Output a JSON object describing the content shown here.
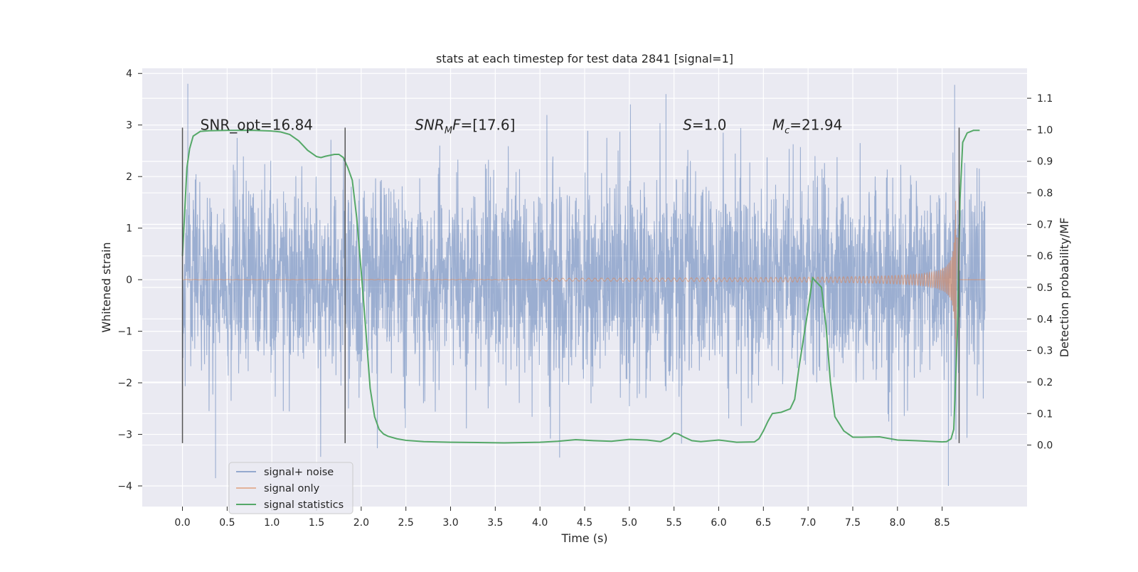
{
  "chart_data": {
    "type": "line",
    "title": "stats at each timestep for test data 2841 [signal=1]",
    "xlabel": "Time (s)",
    "ylabel_left": "Whitened strain",
    "ylabel_right": "Detection probability/MF",
    "xlim": [
      -0.45,
      9.45
    ],
    "ylim_left": [
      -4.4,
      4.1
    ],
    "ylim_right": [
      -0.195,
      1.195
    ],
    "x_ticks": [
      0.0,
      0.5,
      1.0,
      1.5,
      2.0,
      2.5,
      3.0,
      3.5,
      4.0,
      4.5,
      5.0,
      5.5,
      6.0,
      6.5,
      7.0,
      7.5,
      8.0,
      8.5
    ],
    "x_tick_labels": [
      "0.0",
      "0.5",
      "1.0",
      "1.5",
      "2.0",
      "2.5",
      "3.0",
      "3.5",
      "4.0",
      "4.5",
      "5.0",
      "5.5",
      "6.0",
      "6.5",
      "7.0",
      "7.5",
      "8.0",
      "8.5"
    ],
    "y_left_ticks": [
      -4,
      -3,
      -2,
      -1,
      0,
      1,
      2,
      3,
      4
    ],
    "y_left_tick_labels": [
      "−4",
      "−3",
      "−2",
      "−1",
      "0",
      "1",
      "2",
      "3",
      "4"
    ],
    "y_right_ticks": [
      0.0,
      0.1,
      0.2,
      0.3,
      0.4,
      0.5,
      0.6,
      0.7,
      0.8,
      0.9,
      1.0,
      1.1
    ],
    "y_right_tick_labels": [
      "0.0",
      "0.1",
      "0.2",
      "0.3",
      "0.4",
      "0.5",
      "0.6",
      "0.7",
      "0.8",
      "0.9",
      "1.0",
      "1.1"
    ],
    "grid": true,
    "legend_position": "lower-left",
    "annotations": [
      {
        "text": "SNR_opt=16.84",
        "x": 0.2,
        "y": 3.0
      },
      {
        "text": "SNR_MF=[17.6]",
        "x": 2.6,
        "y": 3.0
      },
      {
        "text": "S=1.0",
        "x": 5.6,
        "y": 3.0
      },
      {
        "text": "M_c=21.94",
        "x": 6.6,
        "y": 3.0
      }
    ],
    "vertical_markers": [
      {
        "x": 0.0,
        "y_min": -3.17,
        "y_max": 2.95
      },
      {
        "x": 1.82,
        "y_min": -3.17,
        "y_max": 2.95
      },
      {
        "x": 8.69,
        "y_min": -3.17,
        "y_max": 2.95
      }
    ],
    "series": [
      {
        "name": "signal+ noise",
        "axis": "left",
        "color": "#4c72b0",
        "x_range": [
          0.0,
          8.98
        ],
        "std": 0.95,
        "peaks": [
          [
            0.06,
            3.8
          ],
          [
            0.37,
            -3.85
          ],
          [
            4.22,
            -3.45
          ],
          [
            5.41,
            3.6
          ],
          [
            8.57,
            -4.0
          ],
          [
            8.64,
            3.78
          ]
        ]
      },
      {
        "name": "signal only",
        "axis": "left",
        "color": "#dd8452",
        "x_range": [
          0.0,
          8.98
        ],
        "merger_time": 8.66,
        "peak_amplitude": 3.4
      },
      {
        "name": "signal statistics",
        "axis": "right",
        "color": "#55a868",
        "x": [
          0.0,
          0.05,
          0.08,
          0.12,
          0.2,
          0.3,
          0.5,
          0.8,
          1.0,
          1.1,
          1.2,
          1.3,
          1.4,
          1.5,
          1.55,
          1.6,
          1.7,
          1.75,
          1.8,
          1.85,
          1.9,
          1.95,
          2.0,
          2.05,
          2.1,
          2.15,
          2.2,
          2.25,
          2.3,
          2.4,
          2.5,
          2.7,
          3.0,
          3.3,
          3.6,
          4.0,
          4.2,
          4.4,
          4.6,
          4.8,
          5.0,
          5.2,
          5.35,
          5.45,
          5.5,
          5.55,
          5.6,
          5.7,
          5.8,
          6.0,
          6.2,
          6.4,
          6.45,
          6.5,
          6.55,
          6.6,
          6.7,
          6.8,
          6.85,
          6.9,
          7.0,
          7.05,
          7.1,
          7.15,
          7.2,
          7.25,
          7.3,
          7.4,
          7.5,
          7.6,
          7.8,
          8.0,
          8.2,
          8.5,
          8.55,
          8.6,
          8.63,
          8.67,
          8.7,
          8.73,
          8.78,
          8.85,
          8.92
        ],
        "y": [
          0.6,
          0.88,
          0.94,
          0.98,
          0.995,
          0.997,
          0.998,
          0.998,
          0.996,
          0.993,
          0.985,
          0.965,
          0.935,
          0.915,
          0.912,
          0.916,
          0.922,
          0.922,
          0.912,
          0.88,
          0.84,
          0.72,
          0.55,
          0.37,
          0.18,
          0.09,
          0.05,
          0.035,
          0.028,
          0.02,
          0.015,
          0.011,
          0.009,
          0.008,
          0.007,
          0.009,
          0.012,
          0.017,
          0.014,
          0.012,
          0.018,
          0.016,
          0.011,
          0.024,
          0.038,
          0.035,
          0.027,
          0.014,
          0.011,
          0.016,
          0.009,
          0.01,
          0.02,
          0.045,
          0.075,
          0.1,
          0.104,
          0.115,
          0.145,
          0.25,
          0.43,
          0.53,
          0.515,
          0.5,
          0.38,
          0.2,
          0.09,
          0.045,
          0.025,
          0.025,
          0.026,
          0.016,
          0.014,
          0.01,
          0.011,
          0.02,
          0.05,
          0.35,
          0.78,
          0.96,
          0.99,
          0.998,
          0.998
        ]
      }
    ]
  }
}
